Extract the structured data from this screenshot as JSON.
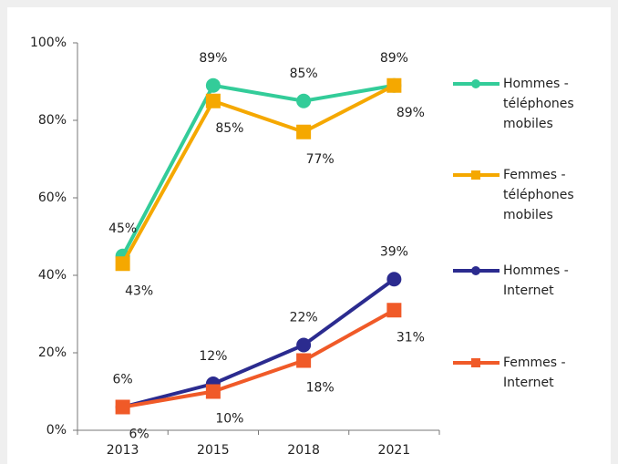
{
  "chart_data": {
    "type": "line",
    "categories": [
      "2013",
      "2015",
      "2018",
      "2021"
    ],
    "ylim": [
      0,
      100
    ],
    "yticks": [
      {
        "value": 0,
        "label": "0%"
      },
      {
        "value": 20,
        "label": "20%"
      },
      {
        "value": 40,
        "label": "40%"
      },
      {
        "value": 60,
        "label": "60%"
      },
      {
        "value": 80,
        "label": "80%"
      },
      {
        "value": 100,
        "label": "100%"
      }
    ],
    "legend": "right",
    "series": [
      {
        "name": "Hommes - téléphones mobiles",
        "color": "#33cc99",
        "marker": "circle",
        "values": [
          45,
          89,
          85,
          89
        ],
        "value_labels": [
          "45%",
          "89%",
          "85%",
          "89%"
        ]
      },
      {
        "name": "Femmes - téléphones mobiles",
        "color": "#f5a800",
        "marker": "square",
        "values": [
          43,
          85,
          77,
          89
        ],
        "value_labels": [
          "43%",
          "85%",
          "77%",
          "89%"
        ]
      },
      {
        "name": "Hommes - Internet",
        "color": "#2b2b8f",
        "marker": "circle",
        "values": [
          6,
          12,
          22,
          39
        ],
        "value_labels": [
          "6%",
          "12%",
          "22%",
          "39%"
        ]
      },
      {
        "name": "Femmes - Internet",
        "color": "#f05a28",
        "marker": "square",
        "values": [
          6,
          10,
          18,
          31
        ],
        "value_labels": [
          "6%",
          "10%",
          "18%",
          "31%"
        ]
      }
    ]
  }
}
